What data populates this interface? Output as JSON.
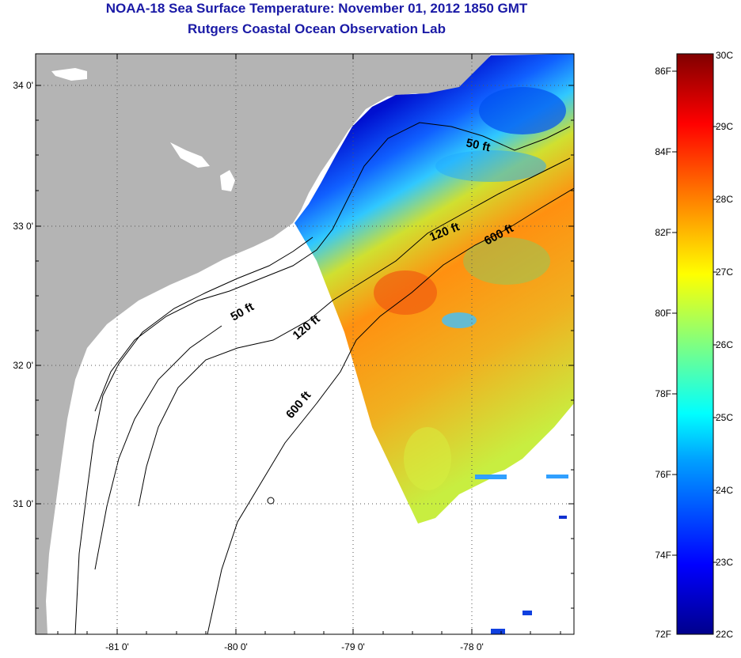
{
  "header": {
    "title": "NOAA-18 Sea Surface Temperature:  November 01, 2012 1850 GMT",
    "subtitle": "Rutgers Coastal Ocean Observation Lab"
  },
  "map": {
    "lat_ticks": [
      "34 0'",
      "33 0'",
      "32 0'",
      "31 0'"
    ],
    "lon_ticks": [
      "-81 0'",
      "-80 0'",
      "-79 0'",
      "-78 0'"
    ],
    "lat_range": [
      30.17,
      34.33
    ],
    "lon_range": [
      -81.68,
      -77.03
    ],
    "contours": [
      {
        "label": "50 ft"
      },
      {
        "label": "120 ft"
      },
      {
        "label": "600 ft"
      },
      {
        "label": "50 ft"
      },
      {
        "label": "120 ft"
      },
      {
        "label": "600 ft"
      }
    ],
    "colors": {
      "land": "#b4b4b4",
      "no_data": "#ffffff"
    }
  },
  "colorbar": {
    "fahrenheit": [
      "86F",
      "84F",
      "82F",
      "80F",
      "78F",
      "76F",
      "74F",
      "72F"
    ],
    "celsius": [
      "30C",
      "29C",
      "28C",
      "27C",
      "26C",
      "25C",
      "24C",
      "23C",
      "22C"
    ],
    "range_c": [
      22,
      30
    ]
  }
}
